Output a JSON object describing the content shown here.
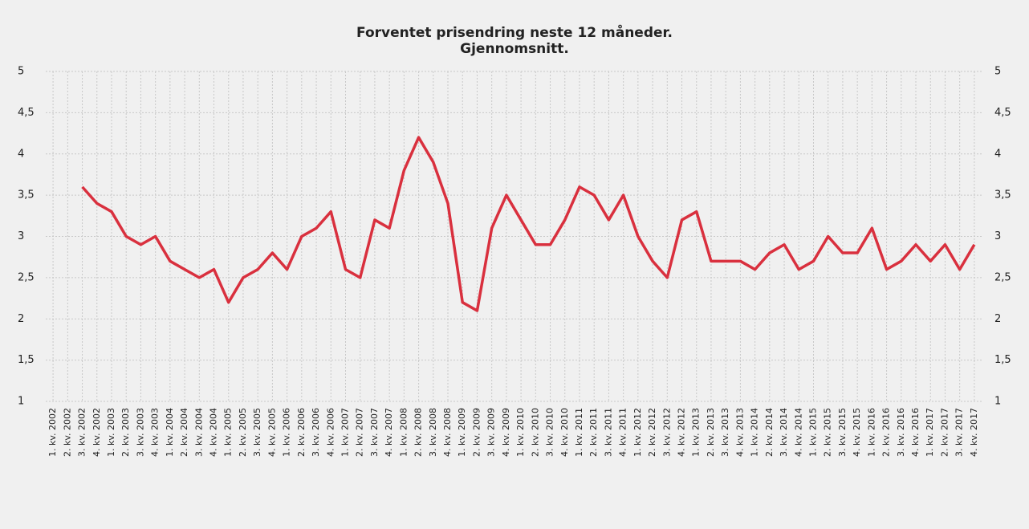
{
  "chart_data": {
    "type": "line",
    "title": "Forventet prisendring neste 12 måneder.",
    "subtitle": "Gjennomsnitt.",
    "categories": [
      "1. kv. 2002",
      "2. kv. 2002",
      "3. kv. 2002",
      "4. kv. 2002",
      "1. kv. 2003",
      "2. kv. 2003",
      "3. kv. 2003",
      "4. kv. 2003",
      "1. kv. 2004",
      "2. kv. 2004",
      "3. kv. 2004",
      "4. kv. 2004",
      "1. kv. 2005",
      "2. kv. 2005",
      "3. kv. 2005",
      "4. kv. 2005",
      "1. kv. 2006",
      "2. kv. 2006",
      "3. kv. 2006",
      "4. kv. 2006",
      "1. kv. 2007",
      "2. kv. 2007",
      "3. kv. 2007",
      "4. kv. 2007",
      "1. kv. 2008",
      "2. kv. 2008",
      "3. kv. 2008",
      "4. kv. 2008",
      "1. kv. 2009",
      "2. kv. 2009",
      "3. kv. 2009",
      "4. kv. 2009",
      "1. kv. 2010",
      "2. kv. 2010",
      "3. kv. 2010",
      "4. kv. 2010",
      "1. kv. 2011",
      "2. kv. 2011",
      "3. kv. 2011",
      "4. kv. 2011",
      "1. kv. 2012",
      "2. kv. 2012",
      "3. kv. 2012",
      "4. kv. 2012",
      "1. kv. 2013",
      "2. kv. 2013",
      "3. kv. 2013",
      "4. kv. 2013",
      "1. kv. 2014",
      "2. kv. 2014",
      "3. kv. 2014",
      "4. kv. 2014",
      "1. kv. 2015",
      "2. kv. 2015",
      "3. kv. 2015",
      "4. kv. 2015",
      "1. kv. 2016",
      "2. kv. 2016",
      "3. kv. 2016",
      "4. kv. 2016",
      "1. kv. 2017",
      "2. kv. 2017",
      "3. kv. 2017",
      "4. kv. 2017"
    ],
    "series": [
      {
        "color": "#d9303e",
        "values": [
          null,
          null,
          3.6,
          3.4,
          3.3,
          3.0,
          2.9,
          3.0,
          2.7,
          2.6,
          2.5,
          2.6,
          2.2,
          2.5,
          2.6,
          2.8,
          2.6,
          3.0,
          3.1,
          3.3,
          2.6,
          2.5,
          3.2,
          3.1,
          3.8,
          4.2,
          3.9,
          3.4,
          2.2,
          2.1,
          3.1,
          3.5,
          3.2,
          2.9,
          2.9,
          3.2,
          3.6,
          3.5,
          3.2,
          3.5,
          3.0,
          2.7,
          2.5,
          3.2,
          3.3,
          2.7,
          2.7,
          2.7,
          2.6,
          2.8,
          2.9,
          2.6,
          2.7,
          3.0,
          2.8,
          2.8,
          3.1,
          2.6,
          2.7,
          2.9,
          2.7,
          2.9,
          2.6,
          2.9
        ]
      }
    ],
    "ylim": [
      1,
      5
    ],
    "yticks": [
      1,
      {
        "value": 1.5,
        "label": "1,5"
      },
      2,
      {
        "value": 2.5,
        "label": "2,5"
      },
      3,
      {
        "value": 3.5,
        "label": "3,5"
      },
      4,
      {
        "value": 4.5,
        "label": "4,5"
      },
      5
    ],
    "y2lim": [
      1,
      5
    ],
    "y2ticks": [
      1,
      {
        "value": 1.5,
        "label": "1,5"
      },
      2,
      {
        "value": 2.5,
        "label": "2,5"
      },
      3,
      {
        "value": 3.5,
        "label": "3,5"
      },
      4,
      {
        "value": 4.5,
        "label": "4,5"
      },
      5
    ],
    "grid": true
  }
}
